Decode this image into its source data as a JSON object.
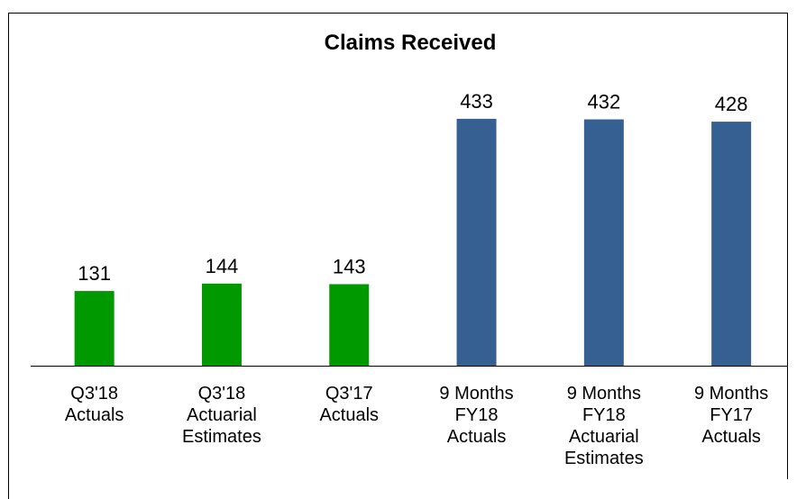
{
  "chart_data": {
    "type": "bar",
    "title": "Claims Received",
    "categories": [
      "Q3'18\nActuals",
      "Q3'18\nActuarial\nEstimates",
      "Q3'17\nActuals",
      "9 Months\nFY18\nActuals",
      "9 Months\nFY18\nActuarial\nEstimates",
      "9 Months\nFY17\nActuals"
    ],
    "values": [
      131,
      144,
      143,
      433,
      432,
      428
    ],
    "colors": [
      "#009900",
      "#009900",
      "#009900",
      "#376092",
      "#376092",
      "#376092"
    ]
  }
}
